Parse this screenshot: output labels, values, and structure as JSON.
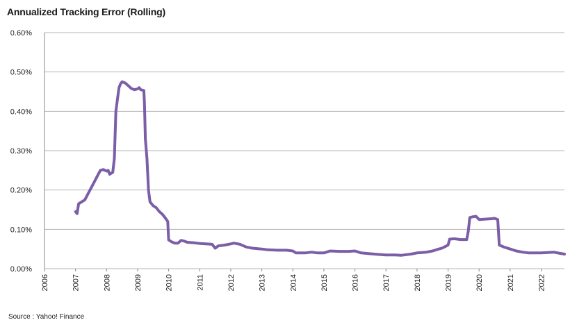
{
  "title": "Annualized Tracking Error (Rolling)",
  "source": "Source : Yahoo! Finance",
  "colors": {
    "line": "#7b5ea7",
    "grid": "#b5b5b5",
    "axis": "#888888"
  },
  "chart_data": {
    "type": "line",
    "title": "Annualized Tracking Error (Rolling)",
    "xlabel": "",
    "ylabel": "",
    "xlim": [
      2006,
      2022.75
    ],
    "ylim": [
      0,
      0.6
    ],
    "yticks": [
      0,
      0.1,
      0.2,
      0.3,
      0.4,
      0.5,
      0.6
    ],
    "ytick_labels": [
      "0.00%",
      "0.10%",
      "0.20%",
      "0.30%",
      "0.40%",
      "0.50%",
      "0.60%"
    ],
    "xtick_labels": [
      "2006",
      "2007",
      "2008",
      "2009",
      "2010",
      "2011",
      "2012",
      "2013",
      "2014",
      "2015",
      "2016",
      "2017",
      "2018",
      "2019",
      "2020",
      "2021",
      "2022"
    ],
    "grid": true,
    "series": [
      {
        "points": [
          [
            2007.0,
            0.145
          ],
          [
            2007.05,
            0.14
          ],
          [
            2007.1,
            0.165
          ],
          [
            2007.2,
            0.17
          ],
          [
            2007.3,
            0.175
          ],
          [
            2007.4,
            0.19
          ],
          [
            2007.5,
            0.205
          ],
          [
            2007.6,
            0.22
          ],
          [
            2007.7,
            0.235
          ],
          [
            2007.8,
            0.25
          ],
          [
            2007.9,
            0.252
          ],
          [
            2008.0,
            0.248
          ],
          [
            2008.05,
            0.25
          ],
          [
            2008.1,
            0.24
          ],
          [
            2008.2,
            0.245
          ],
          [
            2008.25,
            0.28
          ],
          [
            2008.3,
            0.4
          ],
          [
            2008.35,
            0.43
          ],
          [
            2008.4,
            0.46
          ],
          [
            2008.45,
            0.47
          ],
          [
            2008.5,
            0.475
          ],
          [
            2008.6,
            0.472
          ],
          [
            2008.7,
            0.465
          ],
          [
            2008.8,
            0.458
          ],
          [
            2008.9,
            0.455
          ],
          [
            2009.0,
            0.457
          ],
          [
            2009.05,
            0.46
          ],
          [
            2009.1,
            0.455
          ],
          [
            2009.2,
            0.453
          ],
          [
            2009.22,
            0.42
          ],
          [
            2009.25,
            0.33
          ],
          [
            2009.3,
            0.28
          ],
          [
            2009.35,
            0.2
          ],
          [
            2009.4,
            0.17
          ],
          [
            2009.5,
            0.16
          ],
          [
            2009.6,
            0.155
          ],
          [
            2009.7,
            0.145
          ],
          [
            2009.8,
            0.138
          ],
          [
            2009.9,
            0.128
          ],
          [
            2009.97,
            0.12
          ],
          [
            2010.0,
            0.073
          ],
          [
            2010.1,
            0.068
          ],
          [
            2010.2,
            0.065
          ],
          [
            2010.3,
            0.065
          ],
          [
            2010.4,
            0.072
          ],
          [
            2010.5,
            0.07
          ],
          [
            2010.6,
            0.067
          ],
          [
            2010.8,
            0.066
          ],
          [
            2011.0,
            0.064
          ],
          [
            2011.2,
            0.063
          ],
          [
            2011.4,
            0.062
          ],
          [
            2011.5,
            0.052
          ],
          [
            2011.6,
            0.058
          ],
          [
            2011.8,
            0.06
          ],
          [
            2012.0,
            0.063
          ],
          [
            2012.1,
            0.065
          ],
          [
            2012.3,
            0.062
          ],
          [
            2012.5,
            0.055
          ],
          [
            2012.7,
            0.052
          ],
          [
            2013.0,
            0.05
          ],
          [
            2013.2,
            0.048
          ],
          [
            2013.5,
            0.047
          ],
          [
            2013.8,
            0.047
          ],
          [
            2014.0,
            0.045
          ],
          [
            2014.1,
            0.04
          ],
          [
            2014.4,
            0.04
          ],
          [
            2014.6,
            0.042
          ],
          [
            2014.8,
            0.04
          ],
          [
            2015.0,
            0.04
          ],
          [
            2015.2,
            0.045
          ],
          [
            2015.5,
            0.044
          ],
          [
            2015.8,
            0.044
          ],
          [
            2016.0,
            0.045
          ],
          [
            2016.2,
            0.04
          ],
          [
            2016.5,
            0.038
          ],
          [
            2016.8,
            0.036
          ],
          [
            2017.0,
            0.035
          ],
          [
            2017.3,
            0.035
          ],
          [
            2017.5,
            0.034
          ],
          [
            2017.8,
            0.037
          ],
          [
            2018.0,
            0.04
          ],
          [
            2018.3,
            0.042
          ],
          [
            2018.5,
            0.045
          ],
          [
            2018.7,
            0.05
          ],
          [
            2018.8,
            0.052
          ],
          [
            2018.9,
            0.056
          ],
          [
            2019.0,
            0.06
          ],
          [
            2019.05,
            0.075
          ],
          [
            2019.2,
            0.076
          ],
          [
            2019.4,
            0.074
          ],
          [
            2019.6,
            0.074
          ],
          [
            2019.65,
            0.095
          ],
          [
            2019.7,
            0.13
          ],
          [
            2019.8,
            0.132
          ],
          [
            2019.9,
            0.133
          ],
          [
            2020.0,
            0.125
          ],
          [
            2020.2,
            0.126
          ],
          [
            2020.4,
            0.127
          ],
          [
            2020.5,
            0.128
          ],
          [
            2020.6,
            0.125
          ],
          [
            2020.65,
            0.06
          ],
          [
            2020.8,
            0.055
          ],
          [
            2021.0,
            0.05
          ],
          [
            2021.2,
            0.045
          ],
          [
            2021.4,
            0.042
          ],
          [
            2021.6,
            0.04
          ],
          [
            2021.8,
            0.04
          ],
          [
            2022.0,
            0.04
          ],
          [
            2022.2,
            0.041
          ],
          [
            2022.4,
            0.042
          ],
          [
            2022.6,
            0.039
          ],
          [
            2022.75,
            0.037
          ]
        ]
      }
    ]
  }
}
